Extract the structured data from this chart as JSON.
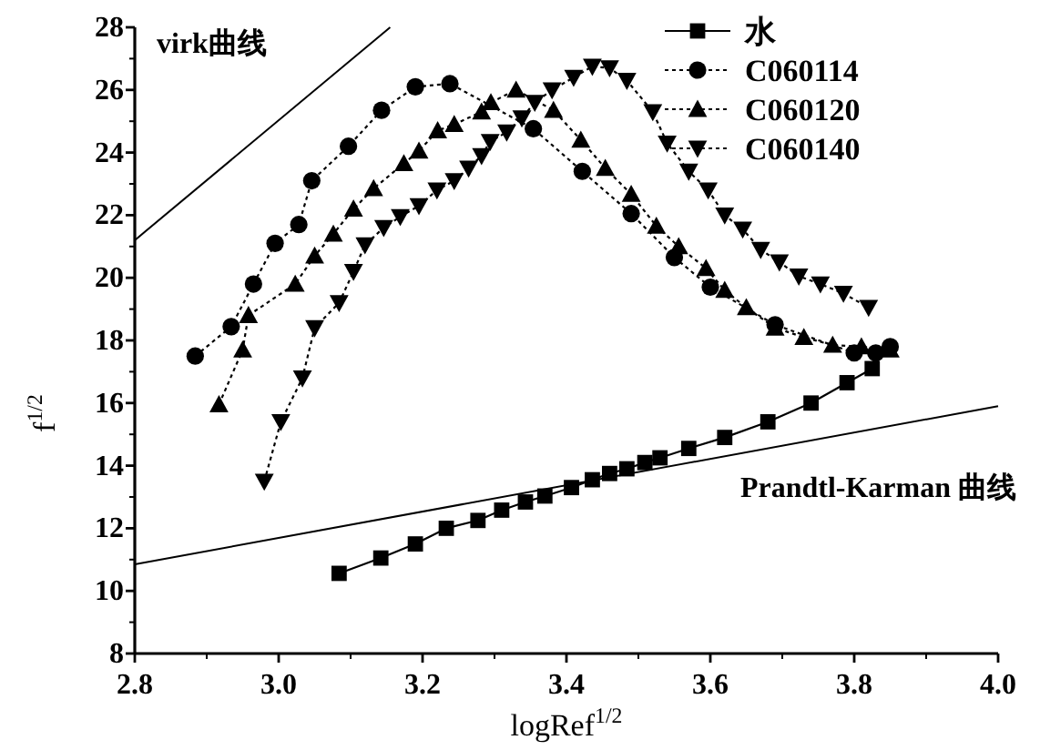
{
  "chart_data": {
    "type": "line",
    "xlabel": "logRef$^{1/2}$",
    "ylabel": "f$^{1/2}$",
    "xlim": [
      2.8,
      4.0
    ],
    "ylim": [
      8,
      28
    ],
    "xticks": [
      {
        "value": 2.8,
        "label": "2.8"
      },
      {
        "value": 3.0,
        "label": "3.0"
      },
      {
        "value": 3.2,
        "label": "3.2"
      },
      {
        "value": 3.4,
        "label": "3.4"
      },
      {
        "value": 3.6,
        "label": "3.6"
      },
      {
        "value": 3.8,
        "label": "3.8"
      },
      {
        "value": 4.0,
        "label": "4.0"
      }
    ],
    "yticks": [
      8,
      10,
      12,
      14,
      16,
      18,
      20,
      22,
      24,
      26,
      28
    ],
    "grid": false,
    "legend": "top right",
    "series": [
      {
        "name": "水",
        "color": "#000000",
        "marker": "square",
        "line_style": "solid",
        "x": [
          3.084,
          3.142,
          3.19,
          3.233,
          3.277,
          3.31,
          3.343,
          3.37,
          3.407,
          3.436,
          3.46,
          3.484,
          3.509,
          3.53,
          3.57,
          3.62,
          3.68,
          3.74,
          3.79,
          3.825
        ],
        "values": [
          10.56,
          11.05,
          11.5,
          12.0,
          12.25,
          12.58,
          12.84,
          13.03,
          13.3,
          13.55,
          13.75,
          13.9,
          14.1,
          14.25,
          14.55,
          14.9,
          15.4,
          16.0,
          16.65,
          17.1
        ]
      },
      {
        "name": "C060114",
        "color": "#000000",
        "marker": "circle",
        "line_style": "dotted",
        "x": [
          2.884,
          2.934,
          2.965,
          2.995,
          3.028,
          3.046,
          3.097,
          3.143,
          3.19,
          3.238,
          3.354,
          3.422,
          3.49,
          3.55,
          3.6,
          3.69,
          3.8,
          3.83,
          3.85
        ],
        "values": [
          17.5,
          18.44,
          19.8,
          21.1,
          21.7,
          23.1,
          24.2,
          25.35,
          26.1,
          26.2,
          24.76,
          23.4,
          22.05,
          20.65,
          19.7,
          18.5,
          17.6,
          17.6,
          17.8
        ]
      },
      {
        "name": "C060120",
        "color": "#000000",
        "marker": "triangle",
        "line_style": "dotted",
        "x": [
          2.917,
          2.95,
          2.958,
          3.023,
          3.05,
          3.076,
          3.104,
          3.132,
          3.174,
          3.195,
          3.221,
          3.244,
          3.282,
          3.295,
          3.33,
          3.382,
          3.42,
          3.454,
          3.49,
          3.525,
          3.556,
          3.594,
          3.62,
          3.65,
          3.69,
          3.73,
          3.77,
          3.81,
          3.85
        ],
        "values": [
          15.95,
          17.7,
          18.8,
          19.8,
          20.7,
          21.4,
          22.2,
          22.85,
          23.65,
          24.05,
          24.7,
          24.9,
          25.3,
          25.6,
          26.0,
          25.35,
          24.4,
          23.5,
          22.67,
          21.65,
          21.0,
          20.3,
          19.6,
          19.05,
          18.4,
          18.1,
          17.85,
          17.8,
          17.7
        ]
      },
      {
        "name": "C060140",
        "color": "#000000",
        "marker": "triangle-down",
        "line_style": "dotted",
        "x": [
          2.98,
          3.003,
          3.033,
          3.05,
          3.084,
          3.104,
          3.12,
          3.146,
          3.169,
          3.195,
          3.22,
          3.244,
          3.264,
          3.282,
          3.294,
          3.317,
          3.338,
          3.356,
          3.38,
          3.41,
          3.436,
          3.46,
          3.484,
          3.52,
          3.54,
          3.57,
          3.597,
          3.62,
          3.645,
          3.67,
          3.696,
          3.723,
          3.753,
          3.785,
          3.82
        ],
        "values": [
          13.5,
          15.4,
          16.8,
          18.4,
          19.2,
          20.2,
          21.05,
          21.6,
          21.95,
          22.3,
          22.8,
          23.1,
          23.5,
          23.9,
          24.35,
          24.65,
          25.1,
          25.6,
          26.0,
          26.4,
          26.75,
          26.7,
          26.3,
          25.3,
          24.3,
          23.4,
          22.8,
          22.0,
          21.55,
          20.9,
          20.5,
          20.05,
          19.8,
          19.5,
          19.05
        ]
      },
      {
        "name": "virk曲线",
        "color": "#000000",
        "marker": "none",
        "line_style": "solid",
        "x": [
          2.8,
          3.155
        ],
        "values": [
          21.2,
          28.0
        ]
      },
      {
        "name": "Prandtl-Karman 曲线",
        "color": "#000000",
        "marker": "none",
        "line_style": "solid",
        "x": [
          2.8,
          4.0
        ],
        "values": [
          10.85,
          15.9
        ]
      }
    ]
  }
}
